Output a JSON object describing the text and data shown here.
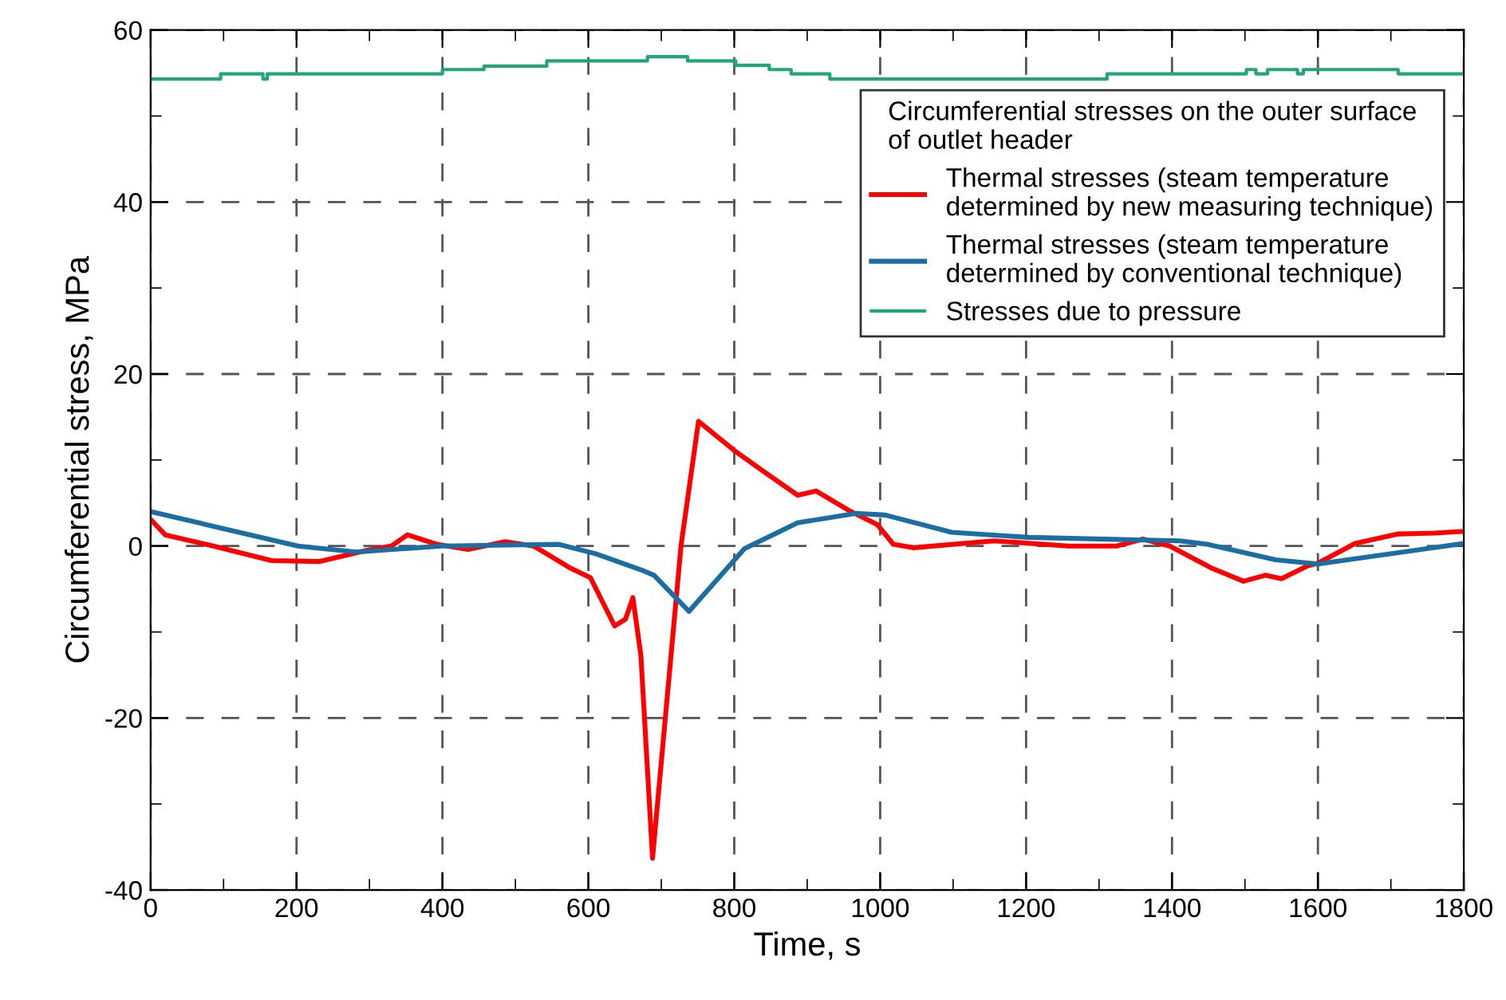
{
  "chart_data": {
    "type": "line",
    "xlabel": "Time, s",
    "ylabel": "Circumferential stress, MPa",
    "legend_title": "Circumferential stresses on the outer surface\nof outlet header",
    "xlim": [
      0,
      1800
    ],
    "xticks": [
      0,
      200,
      400,
      600,
      800,
      1000,
      1200,
      1400,
      1600,
      1800
    ],
    "ylim": [
      -40,
      60
    ],
    "yticks": [
      -40,
      -20,
      0,
      20,
      40,
      60
    ],
    "grid": true,
    "legend": "top right",
    "series": [
      {
        "name": "Thermal stresses (steam temperature\ndetermined by new measuring technique)",
        "color": "#ff0000",
        "x": [
          0,
          20,
          86,
          166,
          232,
          297,
          330,
          352,
          392,
          435,
          486,
          525,
          574,
          603,
          636,
          651,
          661,
          672,
          688,
          727,
          751,
          800,
          843,
          887,
          912,
          960,
          996,
          1018,
          1045,
          1156,
          1258,
          1324,
          1360,
          1397,
          1455,
          1498,
          1528,
          1550,
          1586,
          1600,
          1651,
          1710,
          1760,
          1800
        ],
        "values": [
          3.1,
          1.3,
          0,
          -1.7,
          -1.8,
          -0.5,
          0,
          1.3,
          0.2,
          -0.4,
          0.5,
          0,
          -2.5,
          -3.7,
          -9.3,
          -8.5,
          -6,
          -12.7,
          -36.3,
          0,
          14.5,
          11.1,
          8.5,
          5.9,
          6.4,
          4.0,
          2.5,
          0.2,
          -0.2,
          0.6,
          0,
          0,
          0.8,
          0,
          -2.6,
          -4.1,
          -3.4,
          -3.8,
          -2.3,
          -2.0,
          0.3,
          1.4,
          1.5,
          1.7
        ]
      },
      {
        "name": "Thermal stresses (steam temperature\ndetermined by conventional technique)",
        "color": "#1b6ea3",
        "x": [
          0,
          202,
          282,
          399,
          559,
          610,
          676,
          690,
          738,
          814,
          887,
          967,
          1007,
          1098,
          1204,
          1411,
          1448,
          1542,
          1600,
          1800
        ],
        "values": [
          4.0,
          0,
          -0.7,
          0,
          0.2,
          -0.9,
          -2.9,
          -3.4,
          -7.6,
          -0.3,
          2.7,
          3.8,
          3.6,
          1.6,
          1.0,
          0.6,
          0.2,
          -1.6,
          -2.1,
          0.3
        ]
      },
      {
        "name": "Stresses due to pressure",
        "color": "#22a679",
        "type": "step",
        "x": [
          0,
          96,
          154,
          160,
          400,
          457,
          543,
          681,
          736,
          802,
          848,
          878,
          931,
          1311,
          1502,
          1515,
          1531,
          1572,
          1580,
          1710,
          1800
        ],
        "values": [
          54.3,
          54.9,
          54.3,
          54.9,
          55.4,
          55.8,
          56.4,
          56.9,
          56.4,
          55.9,
          55.4,
          54.9,
          54.3,
          54.9,
          55.4,
          54.9,
          55.4,
          54.9,
          55.4,
          54.9,
          54.9
        ]
      }
    ]
  }
}
